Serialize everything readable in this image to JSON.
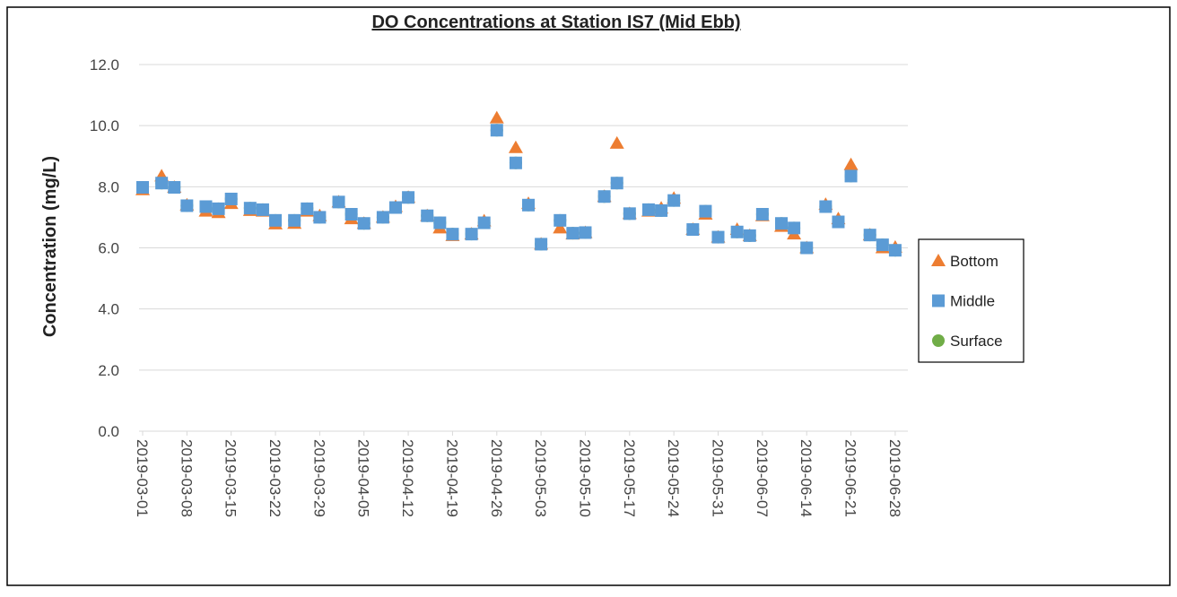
{
  "chart_data": {
    "type": "scatter",
    "title": "DO Concentrations at Station IS7 (Mid Ebb)",
    "y_label": "Concentration (mg/L)",
    "x": [
      "2019-03-01",
      "2019-03-04",
      "2019-03-06",
      "2019-03-08",
      "2019-03-11",
      "2019-03-13",
      "2019-03-15",
      "2019-03-18",
      "2019-03-20",
      "2019-03-22",
      "2019-03-25",
      "2019-03-27",
      "2019-03-29",
      "2019-04-01",
      "2019-04-03",
      "2019-04-05",
      "2019-04-08",
      "2019-04-10",
      "2019-04-12",
      "2019-04-15",
      "2019-04-17",
      "2019-04-19",
      "2019-04-22",
      "2019-04-24",
      "2019-04-26",
      "2019-04-29",
      "2019-05-01",
      "2019-05-03",
      "2019-05-06",
      "2019-05-08",
      "2019-05-10",
      "2019-05-13",
      "2019-05-15",
      "2019-05-17",
      "2019-05-20",
      "2019-05-22",
      "2019-05-24",
      "2019-05-27",
      "2019-05-29",
      "2019-05-31",
      "2019-06-03",
      "2019-06-05",
      "2019-06-07",
      "2019-06-10",
      "2019-06-12",
      "2019-06-14",
      "2019-06-17",
      "2019-06-19",
      "2019-06-21",
      "2019-06-24",
      "2019-06-26",
      "2019-06-28"
    ],
    "series": [
      {
        "name": "Surface",
        "color": "#70ad47",
        "marker": "circle",
        "values": [
          7.98,
          8.12,
          7.98,
          7.38,
          7.35,
          7.28,
          7.6,
          7.3,
          7.25,
          6.9,
          6.9,
          7.28,
          7.0,
          7.5,
          7.1,
          6.8,
          7.0,
          7.32,
          7.65,
          7.05,
          6.82,
          6.45,
          6.45,
          6.82,
          9.85,
          8.78,
          7.4,
          6.12,
          6.9,
          6.48,
          6.5,
          7.68,
          8.12,
          7.12,
          7.25,
          7.22,
          7.55,
          6.6,
          7.2,
          6.35,
          6.52,
          6.4,
          7.1,
          6.8,
          6.65,
          6.0,
          7.35,
          6.85,
          8.35,
          6.42,
          6.1,
          5.92
        ]
      },
      {
        "name": "Bottom",
        "color": "#ed7d31",
        "marker": "triangle",
        "values": [
          7.9,
          8.35,
          7.98,
          7.4,
          7.2,
          7.15,
          7.45,
          7.22,
          7.2,
          6.78,
          6.8,
          7.2,
          7.05,
          7.5,
          6.95,
          6.8,
          7.0,
          7.35,
          7.65,
          7.05,
          6.65,
          6.4,
          6.45,
          6.88,
          10.25,
          9.28,
          7.45,
          6.12,
          6.65,
          6.45,
          6.5,
          7.68,
          9.42,
          7.12,
          7.2,
          7.3,
          7.62,
          6.6,
          7.1,
          6.35,
          6.6,
          6.4,
          7.05,
          6.7,
          6.45,
          6.0,
          7.42,
          6.95,
          8.72,
          6.42,
          6.0,
          6.02
        ]
      },
      {
        "name": "Middle",
        "color": "#5b9bd5",
        "marker": "square",
        "values": [
          7.98,
          8.12,
          7.98,
          7.38,
          7.35,
          7.28,
          7.6,
          7.3,
          7.25,
          6.9,
          6.9,
          7.28,
          7.0,
          7.5,
          7.1,
          6.8,
          7.0,
          7.32,
          7.65,
          7.05,
          6.82,
          6.45,
          6.45,
          6.82,
          9.85,
          8.78,
          7.4,
          6.12,
          6.9,
          6.48,
          6.5,
          7.68,
          8.12,
          7.12,
          7.25,
          7.22,
          7.55,
          6.6,
          7.2,
          6.35,
          6.52,
          6.4,
          7.1,
          6.8,
          6.65,
          6.0,
          7.35,
          6.85,
          8.35,
          6.42,
          6.1,
          5.92
        ]
      }
    ],
    "legend_order": [
      1,
      2,
      0
    ],
    "xlim": [
      "2019-03-01",
      "2019-06-30"
    ],
    "xticks": [
      "2019-03-01",
      "2019-03-08",
      "2019-03-15",
      "2019-03-22",
      "2019-03-29",
      "2019-04-05",
      "2019-04-12",
      "2019-04-19",
      "2019-04-26",
      "2019-05-03",
      "2019-05-10",
      "2019-05-17",
      "2019-05-24",
      "2019-05-31",
      "2019-06-07",
      "2019-06-14",
      "2019-06-21",
      "2019-06-28"
    ],
    "ylim": [
      0,
      12
    ],
    "yticks": [
      {
        "value": 0,
        "label": "0.0"
      },
      {
        "value": 2,
        "label": "2.0"
      },
      {
        "value": 4,
        "label": "4.0"
      },
      {
        "value": 6,
        "label": "6.0"
      },
      {
        "value": 8,
        "label": "8.0"
      },
      {
        "value": 10,
        "label": "10.0"
      },
      {
        "value": 12,
        "label": "12.0"
      }
    ],
    "grid": true,
    "legend": "right"
  }
}
